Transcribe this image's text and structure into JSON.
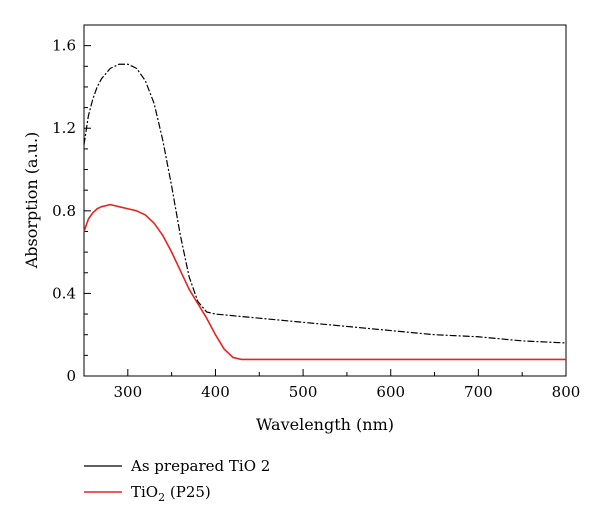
{
  "chart_data": {
    "type": "line",
    "xlabel": "Wavelength (nm)",
    "ylabel": "Absorption (a.u.)",
    "xlim": [
      250,
      800
    ],
    "ylim": [
      0,
      1.7
    ],
    "x_ticks": [
      300,
      400,
      500,
      600,
      700,
      800
    ],
    "y_ticks": [
      0,
      0.4,
      0.8,
      1.2,
      1.6
    ],
    "x_tick_labels": [
      "300",
      "400",
      "500",
      "600",
      "700",
      "800"
    ],
    "y_tick_labels": [
      "0",
      "0.4",
      "0.8",
      "1.2",
      "1.6"
    ],
    "grid": false,
    "legend_position": "bottom-left-outside",
    "series": [
      {
        "name": "As prepared TiO 2",
        "color": "#000000",
        "line_style": "dash-dot",
        "x": [
          250,
          255,
          260,
          265,
          270,
          280,
          290,
          300,
          310,
          320,
          330,
          340,
          350,
          360,
          370,
          380,
          390,
          400,
          450,
          500,
          550,
          600,
          650,
          700,
          750,
          800
        ],
        "y": [
          1.12,
          1.26,
          1.34,
          1.4,
          1.44,
          1.49,
          1.51,
          1.51,
          1.49,
          1.43,
          1.32,
          1.14,
          0.92,
          0.68,
          0.48,
          0.36,
          0.31,
          0.3,
          0.28,
          0.26,
          0.24,
          0.22,
          0.2,
          0.19,
          0.17,
          0.16
        ]
      },
      {
        "name": "TiO2 (P25)",
        "color": "#e8231d",
        "line_style": "solid",
        "x": [
          250,
          255,
          260,
          265,
          270,
          280,
          290,
          300,
          310,
          320,
          330,
          340,
          350,
          360,
          370,
          380,
          390,
          400,
          410,
          420,
          430,
          450,
          500,
          600,
          700,
          800
        ],
        "y": [
          0.7,
          0.76,
          0.79,
          0.81,
          0.82,
          0.83,
          0.82,
          0.81,
          0.8,
          0.78,
          0.74,
          0.68,
          0.6,
          0.51,
          0.42,
          0.35,
          0.28,
          0.2,
          0.13,
          0.09,
          0.08,
          0.08,
          0.08,
          0.08,
          0.08,
          0.08
        ]
      }
    ]
  },
  "legend": {
    "items": [
      {
        "label_main": "As prepared TiO 2",
        "label_sub": "",
        "label_tail": ""
      },
      {
        "label_main": "TiO",
        "label_sub": "2",
        "label_tail": " (P25)"
      }
    ]
  }
}
